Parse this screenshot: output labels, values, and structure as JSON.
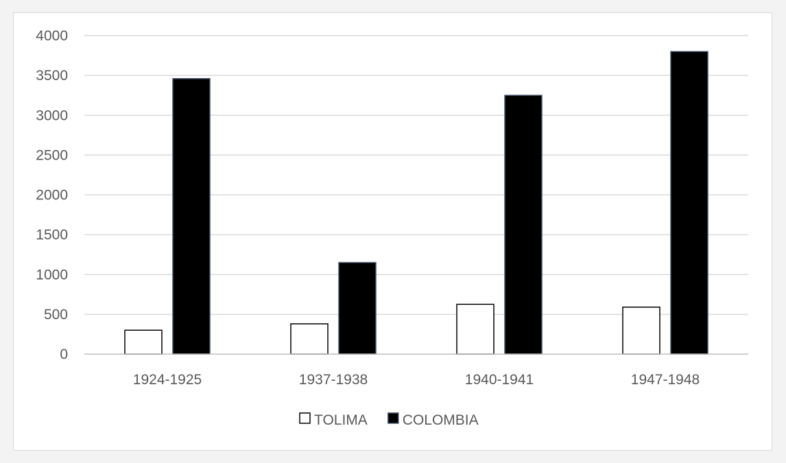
{
  "chart_data": {
    "type": "bar",
    "categories": [
      "1924-1925",
      "1937-1938",
      "1940-1941",
      "1947-1948"
    ],
    "series": [
      {
        "name": "TOLIMA",
        "values": [
          300,
          380,
          625,
          590
        ],
        "fill": "#ffffff",
        "stroke": "#000000"
      },
      {
        "name": "COLOMBIA",
        "values": [
          3460,
          1150,
          3250,
          3800
        ],
        "fill": "#000000",
        "stroke": "#44546a"
      }
    ],
    "ylim": [
      0,
      4000
    ],
    "yticks": [
      0,
      500,
      1000,
      1500,
      2000,
      2500,
      3000,
      3500,
      4000
    ],
    "ytick_labels": [
      "0",
      "500",
      "1000",
      "1500",
      "2000",
      "2500",
      "3000",
      "3500",
      "4000"
    ],
    "grid": true,
    "legend_position": "bottom",
    "colors": {
      "gridline": "#d9d9d9",
      "axis": "#bfbfbf",
      "text": "#595959"
    }
  }
}
